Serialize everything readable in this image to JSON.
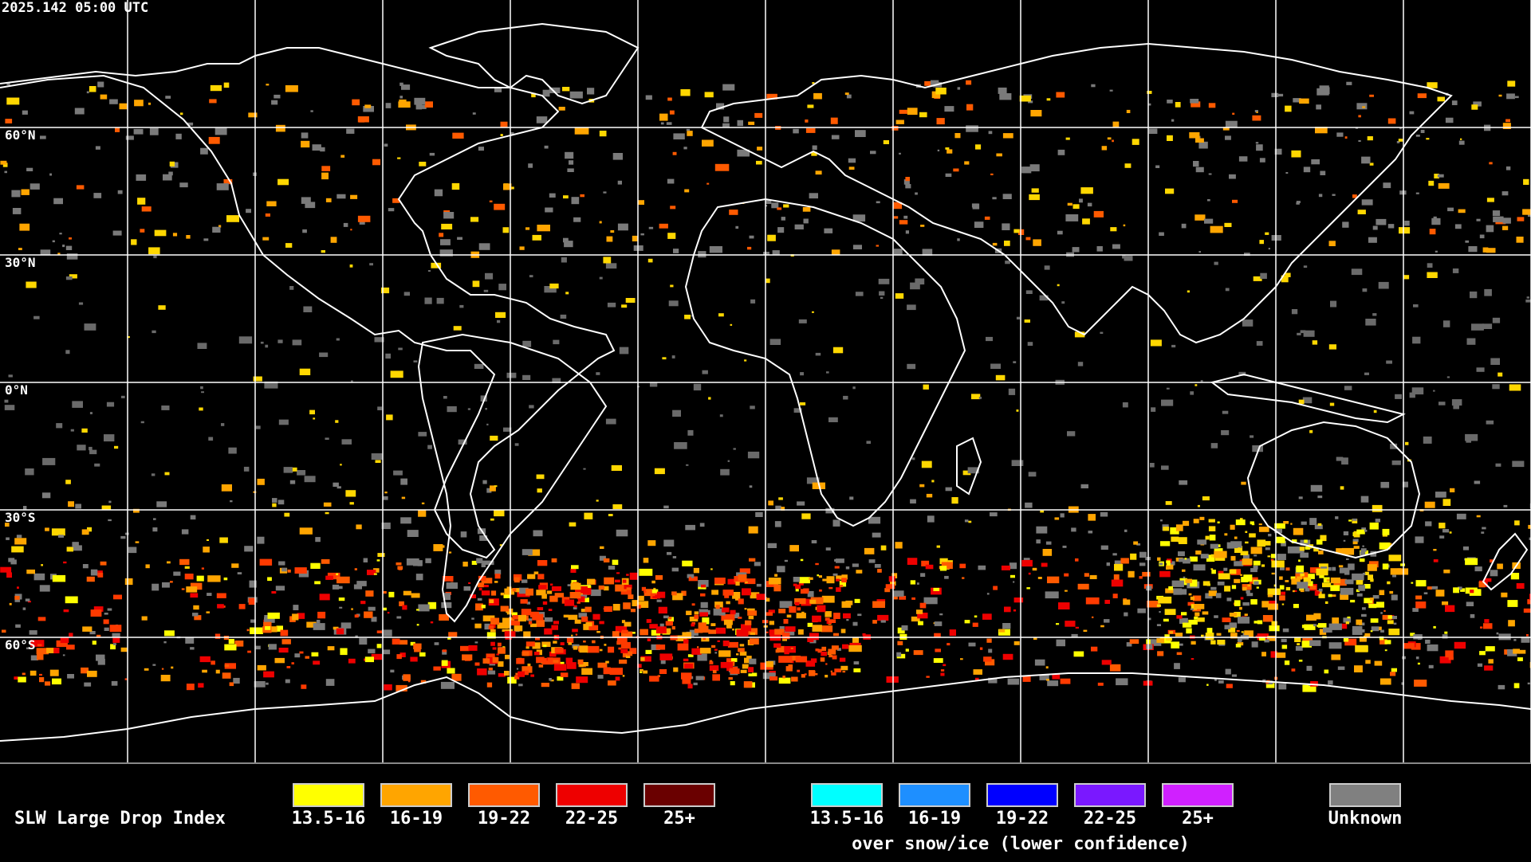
{
  "timestamp": "2025.142 05:00 UTC",
  "lat_labels": [
    "60°N",
    "30°N",
    "0°N",
    "30°S",
    "60°S"
  ],
  "legend": {
    "title": "SLW Large Drop Index",
    "normal": [
      {
        "label": "13.5-16",
        "color": "#ffff00"
      },
      {
        "label": "16-19",
        "color": "#ffa500"
      },
      {
        "label": "19-22",
        "color": "#ff5a00"
      },
      {
        "label": "22-25",
        "color": "#ee0000"
      },
      {
        "label": "25+",
        "color": "#6a0000"
      }
    ],
    "snow": [
      {
        "label": "13.5-16",
        "color": "#00ffff"
      },
      {
        "label": "16-19",
        "color": "#1e8fff"
      },
      {
        "label": "19-22",
        "color": "#0000ff"
      },
      {
        "label": "22-25",
        "color": "#7a18ff"
      },
      {
        "label": "25+",
        "color": "#d020ff"
      }
    ],
    "snow_note": "over snow/ice (lower confidence)",
    "unknown": {
      "label": "Unknown",
      "color": "#808080"
    }
  }
}
